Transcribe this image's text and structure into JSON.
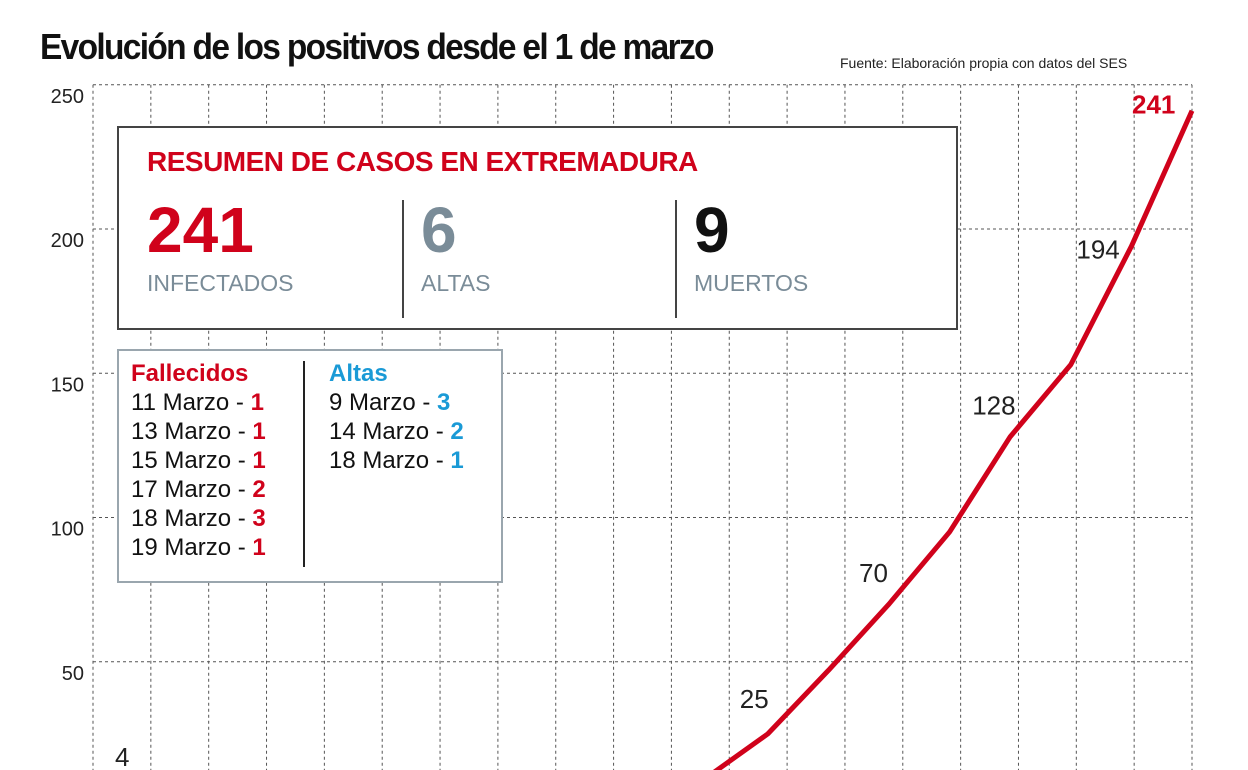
{
  "title": "Evolución de los positivos desde el 1 de marzo",
  "source": "Fuente: Elaboración propia con datos del SES",
  "colors": {
    "line": "#d0021b",
    "accent_red": "#d0021b",
    "altas_blue": "#1a9ad6",
    "gray": "#7a8c98"
  },
  "summary": {
    "heading": "RESUMEN DE CASOS EN EXTREMADURA",
    "stats": [
      {
        "value": "241",
        "label": "INFECTADOS",
        "color": "#d0021b"
      },
      {
        "value": "6",
        "label": "ALTAS",
        "color": "#7a8c98"
      },
      {
        "value": "9",
        "label": "MUERTOS",
        "color": "#111111"
      }
    ]
  },
  "legend": {
    "fallecidos": {
      "title": "Fallecidos",
      "rows": [
        {
          "date": "11 Marzo - ",
          "count": "1"
        },
        {
          "date": "13 Marzo - ",
          "count": "1"
        },
        {
          "date": "15 Marzo - ",
          "count": "1"
        },
        {
          "date": "17 Marzo - ",
          "count": "2"
        },
        {
          "date": "18 Marzo - ",
          "count": "3"
        },
        {
          "date": "19 Marzo - ",
          "count": "1"
        }
      ]
    },
    "altas": {
      "title": "Altas",
      "rows": [
        {
          "date": "9 Marzo - ",
          "count": "3"
        },
        {
          "date": "14 Marzo - ",
          "count": "2"
        },
        {
          "date": "18 Marzo - ",
          "count": "1"
        }
      ]
    }
  },
  "chart_data": {
    "type": "line",
    "title": "Evolución de los positivos desde el 1 de marzo",
    "ylim": [
      0,
      250
    ],
    "yticks": [
      50,
      100,
      150,
      200,
      250
    ],
    "grid": true,
    "x": [
      12,
      13,
      14,
      15,
      16,
      17,
      18,
      19,
      20
    ],
    "values": [
      10,
      25,
      47,
      70,
      95,
      128,
      153,
      194,
      241
    ],
    "data_labels": [
      {
        "text": "4",
        "value": 4
      },
      {
        "text": "25",
        "x": 13,
        "value": 25
      },
      {
        "text": "70",
        "x": 15,
        "value": 70
      },
      {
        "text": "128",
        "x": 17,
        "value": 128
      },
      {
        "text": "194",
        "x": 19,
        "value": 194
      },
      {
        "text": "241",
        "x": 20,
        "value": 241,
        "highlight": true
      }
    ]
  }
}
